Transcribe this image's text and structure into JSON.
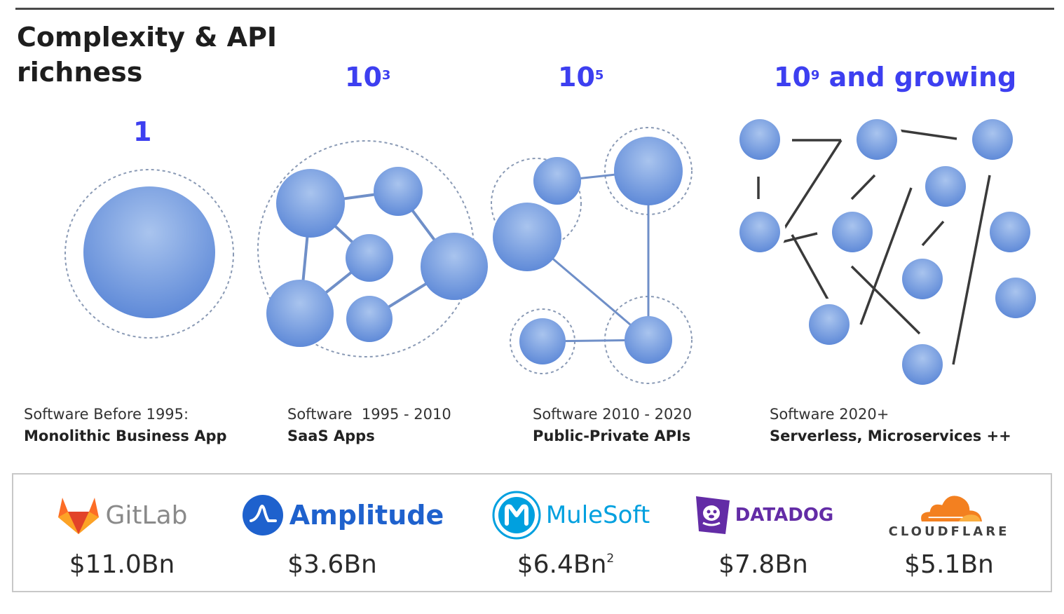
{
  "title": "Complexity & API richness",
  "stages": [
    {
      "scale": "1",
      "exp": "",
      "suffix": "",
      "caption_line1": "Software Before 1995:",
      "caption_line2": "Monolithic Business App"
    },
    {
      "scale": "10",
      "exp": "3",
      "suffix": "",
      "caption_line1": "Software  1995 - 2010",
      "caption_line2": "SaaS Apps"
    },
    {
      "scale": "10",
      "exp": "5",
      "suffix": "",
      "caption_line1": "Software 2010 - 2020",
      "caption_line2": "Public-Private APIs"
    },
    {
      "scale": "10",
      "exp": "9",
      "suffix": " and growing",
      "caption_line1": "Software 2020+",
      "caption_line2": "Serverless, Microservices ++"
    }
  ],
  "companies": [
    {
      "name": "GitLab",
      "valuation": "$11.0Bn",
      "note": ""
    },
    {
      "name": "Amplitude",
      "valuation": "$3.6Bn",
      "note": ""
    },
    {
      "name": "MuleSoft",
      "valuation": "$6.4Bn",
      "note": "2"
    },
    {
      "name": "DATADOG",
      "valuation": "$7.8Bn",
      "note": ""
    },
    {
      "name": "CLOUDFLARE",
      "valuation": "$5.1Bn",
      "note": ""
    }
  ],
  "colors": {
    "accent": "#3d3ff0",
    "node": "#6b96dd",
    "node_light": "#a9c4ee",
    "edge": "#6f8fc8",
    "dark_edge": "#3a3a3a",
    "gitlab": "#e24329",
    "amplitude": "#1e61cd",
    "mulesoft": "#00a0df",
    "datadog": "#632ca6",
    "cloudflare": "#f38020"
  }
}
